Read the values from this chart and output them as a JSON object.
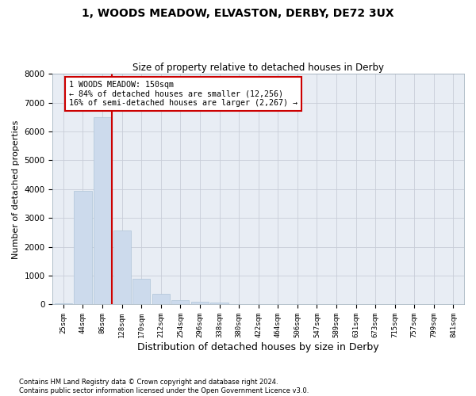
{
  "title": "1, WOODS MEADOW, ELVASTON, DERBY, DE72 3UX",
  "subtitle": "Size of property relative to detached houses in Derby",
  "xlabel": "Distribution of detached houses by size in Derby",
  "ylabel": "Number of detached properties",
  "bar_categories": [
    "25sqm",
    "44sqm",
    "86sqm",
    "128sqm",
    "170sqm",
    "212sqm",
    "254sqm",
    "296sqm",
    "338sqm",
    "380sqm",
    "422sqm",
    "464sqm",
    "506sqm",
    "547sqm",
    "589sqm",
    "631sqm",
    "673sqm",
    "715sqm",
    "757sqm",
    "799sqm",
    "841sqm"
  ],
  "bar_heights": [
    50,
    3950,
    6500,
    2580,
    900,
    370,
    155,
    105,
    65,
    5,
    0,
    0,
    0,
    0,
    0,
    0,
    0,
    0,
    0,
    0,
    0
  ],
  "bar_color": "#ccdaec",
  "bar_edgecolor": "#aec4d8",
  "vline_x": 2.5,
  "vline_color": "#cc0000",
  "annotation_text": "1 WOODS MEADOW: 150sqm\n← 84% of detached houses are smaller (12,256)\n16% of semi-detached houses are larger (2,267) →",
  "annotation_box_color": "#cc0000",
  "ylim": [
    0,
    8000
  ],
  "yticks": [
    0,
    1000,
    2000,
    3000,
    4000,
    5000,
    6000,
    7000,
    8000
  ],
  "footnote": "Contains HM Land Registry data © Crown copyright and database right 2024.\nContains public sector information licensed under the Open Government Licence v3.0.",
  "background_color": "#ffffff",
  "plot_bg_color": "#e8edf4",
  "grid_color": "#c8cdd8",
  "title_fontsize": 10,
  "subtitle_fontsize": 8.5,
  "xlabel_fontsize": 9,
  "ylabel_fontsize": 8
}
